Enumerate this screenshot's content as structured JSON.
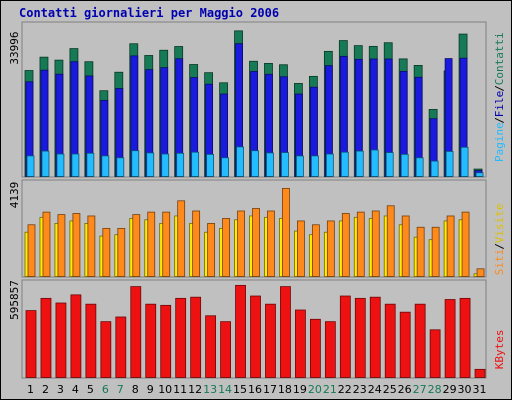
{
  "title": "Contatti giornalieri per Maggio 2006",
  "colors": {
    "contatti": "#157a55",
    "file": "#1a1adf",
    "pagine": "#22bcff",
    "visite": "#ffec00",
    "siti": "#ff8a1c",
    "kbytes": "#ee1111",
    "weekday": "#000000",
    "weekend": "#157a55",
    "legend_pagine": "#22bcff",
    "legend_file": "#0000b0",
    "legend_contatti": "#157a55",
    "legend_siti": "#ff8a1c",
    "legend_visite": "#e0c000",
    "legend_kbytes": "#ee1111"
  },
  "chart_data": [
    {
      "type": "bar",
      "panel": "hits",
      "ymax_label": "33996",
      "ylim": [
        0,
        33996
      ],
      "legend": [
        "Pagine",
        "File",
        "Contatti"
      ],
      "categories": [
        "1",
        "2",
        "3",
        "4",
        "5",
        "6",
        "7",
        "8",
        "9",
        "10",
        "11",
        "12",
        "13",
        "14",
        "15",
        "16",
        "17",
        "18",
        "19",
        "20",
        "21",
        "22",
        "23",
        "24",
        "25",
        "26",
        "27",
        "28",
        "29",
        "30",
        "31"
      ],
      "series": [
        {
          "name": "Contatti",
          "values": [
            23780,
            26780,
            26110,
            28700,
            25760,
            19250,
            23400,
            29790,
            27160,
            28330,
            29170,
            25130,
            23300,
            21030,
            32680,
            25860,
            25380,
            25080,
            20880,
            22470,
            28080,
            30500,
            29370,
            29200,
            30020,
            26390,
            24930,
            15050,
            23690,
            31960,
            1670
          ]
        },
        {
          "name": "File",
          "values": [
            21250,
            23860,
            22960,
            25760,
            22560,
            17080,
            19750,
            27060,
            23980,
            24430,
            26420,
            22200,
            20710,
            18510,
            29800,
            23560,
            22930,
            22380,
            18510,
            20040,
            24870,
            26960,
            26290,
            26370,
            26370,
            23590,
            22270,
            12970,
            26460,
            26550,
            1340
          ]
        },
        {
          "name": "Pagine",
          "values": [
            4620,
            5700,
            5040,
            5040,
            5210,
            4620,
            4200,
            5790,
            5290,
            5040,
            5210,
            5450,
            4960,
            4200,
            6640,
            5790,
            5290,
            5370,
            4620,
            4620,
            5040,
            5450,
            5700,
            5950,
            5370,
            4960,
            4200,
            3450,
            5620,
            6550,
            840
          ]
        }
      ]
    },
    {
      "type": "bar",
      "panel": "visits",
      "ymax_label": "4139",
      "ylim": [
        0,
        4139
      ],
      "legend": [
        "Siti",
        "Visite"
      ],
      "categories": [
        "1",
        "2",
        "3",
        "4",
        "5",
        "6",
        "7",
        "8",
        "9",
        "10",
        "11",
        "12",
        "13",
        "14",
        "15",
        "16",
        "17",
        "18",
        "19",
        "20",
        "21",
        "22",
        "23",
        "24",
        "25",
        "26",
        "27",
        "28",
        "29",
        "30",
        "31"
      ],
      "series": [
        {
          "name": "Siti",
          "values": [
            2290,
            2850,
            2740,
            2790,
            2680,
            2130,
            2130,
            2740,
            2850,
            2850,
            3350,
            2900,
            2350,
            2570,
            2900,
            3010,
            2900,
            3900,
            2460,
            2290,
            2460,
            2790,
            2850,
            2900,
            3130,
            2680,
            2180,
            2180,
            2680,
            2850,
            340
          ]
        },
        {
          "name": "Visite",
          "values": [
            1960,
            2620,
            2350,
            2460,
            2350,
            1790,
            1850,
            2570,
            2510,
            2350,
            2680,
            2350,
            1960,
            2130,
            2510,
            2680,
            2620,
            2570,
            2010,
            1850,
            1960,
            2460,
            2620,
            2570,
            2680,
            2290,
            1740,
            1630,
            2460,
            2510,
            120
          ]
        }
      ]
    },
    {
      "type": "bar",
      "panel": "kbytes",
      "ymax_label": "595857",
      "ylim": [
        0,
        595857
      ],
      "legend": [
        "KBytes"
      ],
      "categories": [
        "1",
        "2",
        "3",
        "4",
        "5",
        "6",
        "7",
        "8",
        "9",
        "10",
        "11",
        "12",
        "13",
        "14",
        "15",
        "16",
        "17",
        "18",
        "19",
        "20",
        "21",
        "22",
        "23",
        "24",
        "25",
        "26",
        "27",
        "28",
        "29",
        "30",
        "31"
      ],
      "series": [
        {
          "name": "KBytes",
          "values": [
            421940,
            499090,
            469710,
            521130,
            462360,
            352180,
            381560,
            573160,
            462360,
            455020,
            499090,
            506430,
            389290,
            352180,
            580910,
            513790,
            462360,
            573160,
            425600,
            367050,
            352180,
            513790,
            499090,
            506430,
            462360,
            411880,
            462360,
            300750,
            491750,
            499090,
            51420
          ]
        }
      ]
    }
  ],
  "weekend_days": [
    6,
    7,
    13,
    14,
    20,
    21,
    27,
    28
  ]
}
